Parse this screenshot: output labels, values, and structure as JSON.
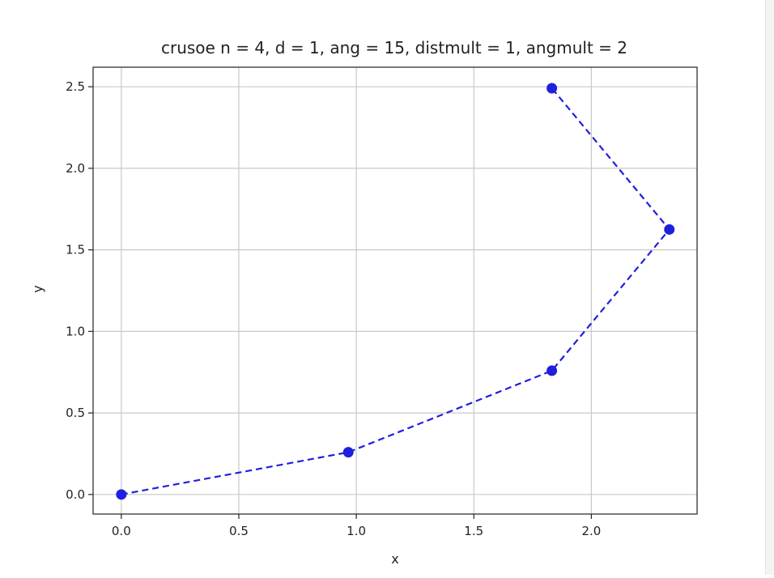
{
  "chart_data": {
    "type": "line",
    "title": "crusoe n = 4, d = 1, ang = 15, distmult = 1, angmult = 2",
    "xlabel": "x",
    "ylabel": "y",
    "xlim": [
      -0.12,
      2.45
    ],
    "ylim": [
      -0.12,
      2.62
    ],
    "xticks": [
      0.0,
      0.5,
      1.0,
      1.5,
      2.0
    ],
    "xtick_labels": [
      "0.0",
      "0.5",
      "1.0",
      "1.5",
      "2.0"
    ],
    "yticks": [
      0.0,
      0.5,
      1.0,
      1.5,
      2.0,
      2.5
    ],
    "ytick_labels": [
      "0.0",
      "0.5",
      "1.0",
      "1.5",
      "2.0",
      "2.5"
    ],
    "grid": true,
    "series": [
      {
        "x": [
          0.0,
          0.966,
          1.832,
          2.332,
          1.832
        ],
        "y": [
          0.0,
          0.259,
          0.759,
          1.625,
          2.491
        ],
        "color": "#1f1fdd",
        "line_style": "dashed",
        "marker": "circle"
      }
    ]
  }
}
